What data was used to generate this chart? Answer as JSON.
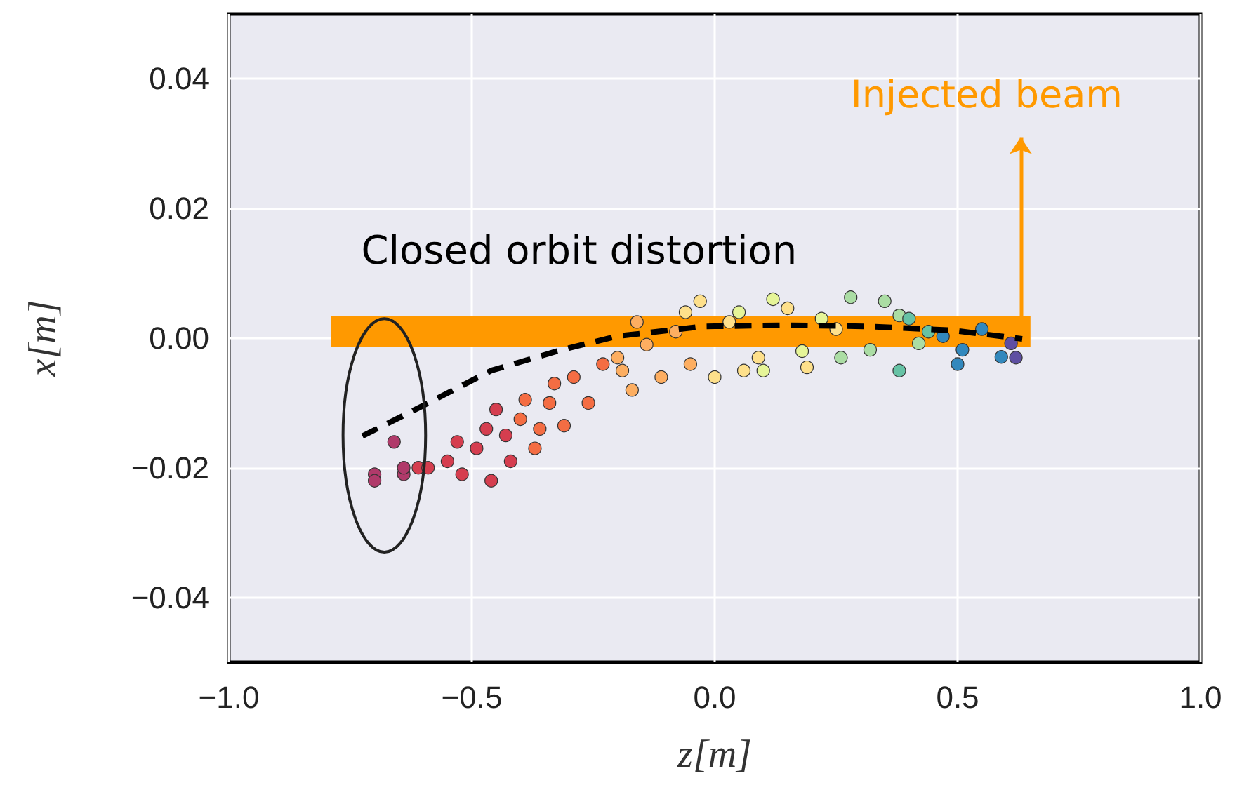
{
  "chart_data": {
    "type": "scatter",
    "xlabel": "z[m]",
    "ylabel": "x[m]",
    "annotations": [
      "Closed orbit distortion",
      "Injected beam"
    ],
    "xlim": [
      -1.0,
      1.0
    ],
    "ylim": [
      -0.05,
      0.05
    ],
    "xticks": [
      {
        "value": -1.0,
        "label": "−1.0"
      },
      {
        "value": -0.5,
        "label": "−0.5"
      },
      {
        "value": 0,
        "label": "0.0"
      },
      {
        "value": 0.5,
        "label": "0.5"
      },
      {
        "value": 1.0,
        "label": "1.0"
      }
    ],
    "yticks": [
      {
        "value": -0.04,
        "label": "−0.04"
      },
      {
        "value": -0.02,
        "label": "−0.02"
      },
      {
        "value": 0,
        "label": "0.00"
      },
      {
        "value": 0.02,
        "label": "0.02"
      },
      {
        "value": 0.04,
        "label": "0.04"
      }
    ],
    "grid": true,
    "marker": "circle",
    "series": [
      {
        "type": "line",
        "color": "#ff9900",
        "line_style": "solid",
        "marker": "none",
        "x": [
          -0.79,
          0.65
        ],
        "values": [
          0.001,
          0.001
        ]
      },
      {
        "color": "#b03a6a",
        "x": [
          -0.7,
          -0.64,
          -0.66,
          -0.7,
          -0.64
        ],
        "values": [
          -0.021,
          -0.021,
          -0.016,
          -0.022,
          -0.02
        ]
      },
      {
        "color": "#d53e4f",
        "x": [
          -0.61,
          -0.59,
          -0.55,
          -0.52,
          -0.49,
          -0.47,
          -0.46,
          -0.43,
          -0.42,
          -0.45,
          -0.53
        ],
        "values": [
          -0.02,
          -0.02,
          -0.019,
          -0.021,
          -0.017,
          -0.014,
          -0.022,
          -0.015,
          -0.019,
          -0.011,
          -0.016
        ]
      },
      {
        "color": "#f46d43",
        "x": [
          -0.4,
          -0.39,
          -0.37,
          -0.34,
          -0.33,
          -0.31,
          -0.29,
          -0.26,
          -0.23,
          -0.36
        ],
        "values": [
          -0.0125,
          -0.0095,
          -0.017,
          -0.01,
          -0.007,
          -0.0135,
          -0.006,
          -0.01,
          -0.004,
          -0.014
        ]
      },
      {
        "color": "#fdae61",
        "x": [
          -0.2,
          -0.17,
          -0.16,
          -0.14,
          -0.11,
          -0.08,
          -0.05,
          -0.19
        ],
        "values": [
          -0.003,
          -0.008,
          0.0025,
          -0.001,
          -0.006,
          0.001,
          -0.004,
          -0.005
        ]
      },
      {
        "color": "#fee08b",
        "x": [
          -0.03,
          0.0,
          0.03,
          0.06,
          0.09,
          0.15,
          0.19,
          0.25,
          -0.06
        ],
        "values": [
          0.0057,
          -0.006,
          0.0025,
          -0.005,
          -0.003,
          0.0046,
          -0.0045,
          0.0014,
          0.004
        ]
      },
      {
        "color": "#e6f598",
        "x": [
          0.05,
          0.12,
          0.18,
          0.22,
          0.1
        ],
        "values": [
          0.004,
          0.006,
          -0.002,
          0.003,
          -0.005
        ]
      },
      {
        "color": "#abdda4",
        "x": [
          0.28,
          0.32,
          0.35,
          0.38,
          0.42,
          0.26
        ],
        "values": [
          0.0063,
          -0.0018,
          0.0057,
          0.0035,
          -0.0008,
          -0.003
        ]
      },
      {
        "color": "#66c2a5",
        "x": [
          0.4,
          0.44,
          0.38
        ],
        "values": [
          0.003,
          0.001,
          -0.005
        ]
      },
      {
        "color": "#3288bd",
        "x": [
          0.47,
          0.51,
          0.55,
          0.59,
          0.5
        ],
        "values": [
          0.0003,
          -0.0018,
          0.0014,
          -0.0029,
          -0.004
        ]
      },
      {
        "color": "#5e4fa2",
        "x": [
          0.61,
          0.62
        ],
        "values": [
          -0.0008,
          -0.003
        ]
      },
      {
        "type": "line",
        "color": "#000000",
        "line_style": "dashed",
        "marker": "none",
        "x": [
          -0.725,
          -0.6,
          -0.46,
          -0.315,
          -0.2,
          -0.026,
          0.147,
          0.32,
          0.49,
          0.633
        ],
        "values": [
          -0.0151,
          -0.0104,
          -0.005,
          -0.0018,
          0.0003,
          0.0018,
          0.002,
          0.0018,
          0.0012,
          -0.0001
        ]
      }
    ]
  }
}
